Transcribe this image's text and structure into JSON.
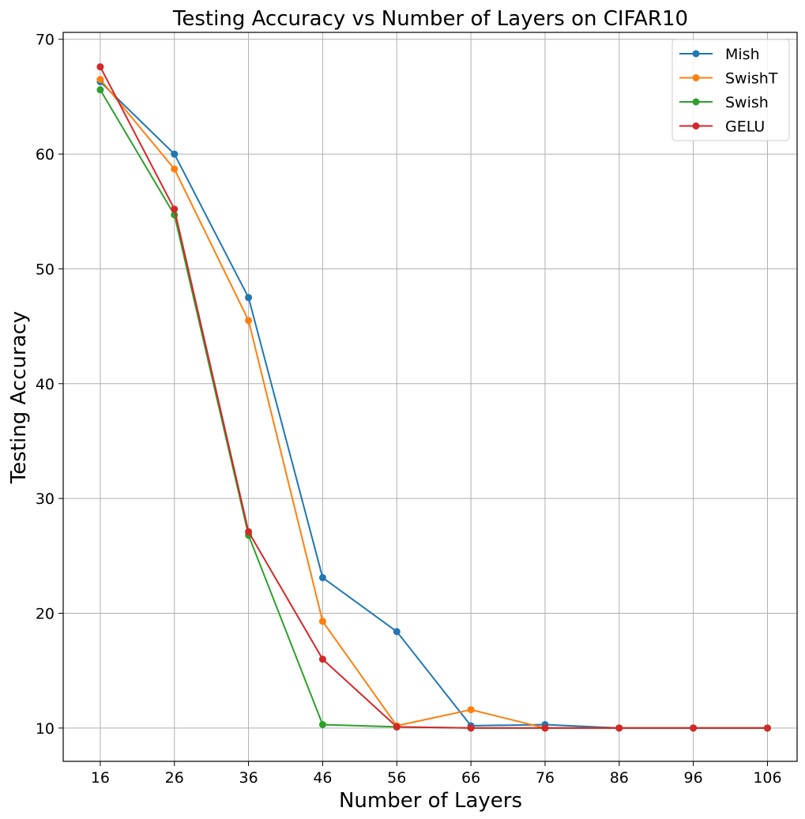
{
  "chart_data": {
    "type": "line",
    "title": "Testing Accuracy vs Number of Layers on CIFAR10",
    "xlabel": "Number of Layers",
    "ylabel": "Testing Accuracy",
    "x": [
      16,
      26,
      36,
      46,
      56,
      66,
      76,
      86,
      96,
      106
    ],
    "x_tick_labels": [
      "16",
      "26",
      "36",
      "46",
      "56",
      "66",
      "76",
      "86",
      "96",
      "106"
    ],
    "y_ticks": [
      10,
      20,
      30,
      40,
      50,
      60,
      70
    ],
    "y_tick_labels": [
      "10",
      "20",
      "30",
      "40",
      "50",
      "60",
      "70"
    ],
    "xlim": [
      11,
      110
    ],
    "ylim": [
      7.1,
      70.6
    ],
    "grid": true,
    "legend_position": "top-right",
    "series": [
      {
        "name": "Mish",
        "color": "#1f77b4",
        "values": [
          66.3,
          60.0,
          47.5,
          23.1,
          18.4,
          10.2,
          10.3,
          10.0,
          10.0,
          10.0
        ]
      },
      {
        "name": "SwishT",
        "color": "#ff7f0e",
        "values": [
          66.5,
          58.7,
          45.5,
          19.3,
          10.2,
          11.6,
          10.0,
          10.0,
          10.0,
          10.0
        ]
      },
      {
        "name": "Swish",
        "color": "#2ca02c",
        "values": [
          65.6,
          54.7,
          26.8,
          10.3,
          10.1,
          10.0,
          10.0,
          10.0,
          10.0,
          10.0
        ]
      },
      {
        "name": "GELU",
        "color": "#d62728",
        "values": [
          67.6,
          55.2,
          27.1,
          16.0,
          10.1,
          10.0,
          10.0,
          10.0,
          10.0,
          10.0
        ]
      }
    ]
  }
}
